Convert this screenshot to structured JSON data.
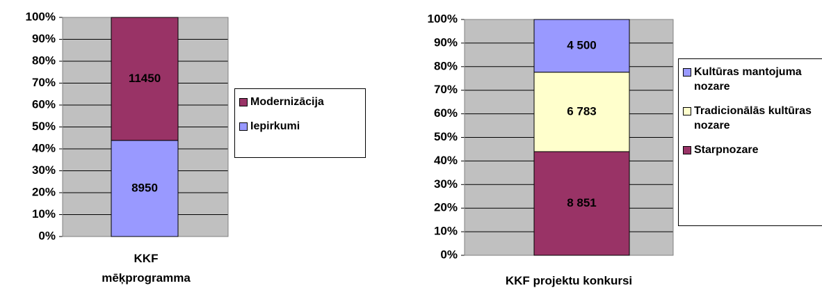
{
  "chart_data": [
    {
      "type": "stacked100",
      "categories": [
        "KKF mēķprogramma"
      ],
      "series": [
        {
          "name": "Iepirkumi",
          "color": "#9999ff",
          "values": [
            8950
          ]
        },
        {
          "name": "Modernizācija",
          "color": "#993366",
          "values": [
            11450
          ]
        }
      ],
      "ylim": [
        0,
        100
      ],
      "yticks": [
        {
          "value": 0,
          "label": "0%"
        },
        {
          "value": 10,
          "label": "10%"
        },
        {
          "value": 20,
          "label": "20%"
        },
        {
          "value": 30,
          "label": "30%"
        },
        {
          "value": 40,
          "label": "40%"
        },
        {
          "value": 50,
          "label": "50%"
        },
        {
          "value": 60,
          "label": "60%"
        },
        {
          "value": 70,
          "label": "70%"
        },
        {
          "value": 80,
          "label": "80%"
        },
        {
          "value": 90,
          "label": "90%"
        },
        {
          "value": 100,
          "label": "100%"
        }
      ],
      "grid": true
    },
    {
      "type": "stacked100",
      "categories": [
        "KKF projektu konkursi"
      ],
      "series": [
        {
          "name": "Starpnozare",
          "color": "#993366",
          "values": [
            8851
          ],
          "value_labels": [
            "8 851"
          ]
        },
        {
          "name": "Tradicionālās kultūras nozare",
          "color": "#ffffcc",
          "values": [
            6783
          ],
          "value_labels": [
            "6 783"
          ]
        },
        {
          "name": "Kultūras mantojuma nozare",
          "color": "#9999ff",
          "values": [
            4500
          ],
          "value_labels": [
            "4 500"
          ]
        }
      ],
      "ylim": [
        0,
        100
      ],
      "yticks": [
        {
          "value": 0,
          "label": "0%"
        },
        {
          "value": 10,
          "label": "10%"
        },
        {
          "value": 20,
          "label": "20%"
        },
        {
          "value": 30,
          "label": "30%"
        },
        {
          "value": 40,
          "label": "40%"
        },
        {
          "value": 50,
          "label": "50%"
        },
        {
          "value": 60,
          "label": "60%"
        },
        {
          "value": 70,
          "label": "70%"
        },
        {
          "value": 80,
          "label": "80%"
        },
        {
          "value": 90,
          "label": "90%"
        },
        {
          "value": 100,
          "label": "100%"
        }
      ],
      "grid": true
    }
  ]
}
